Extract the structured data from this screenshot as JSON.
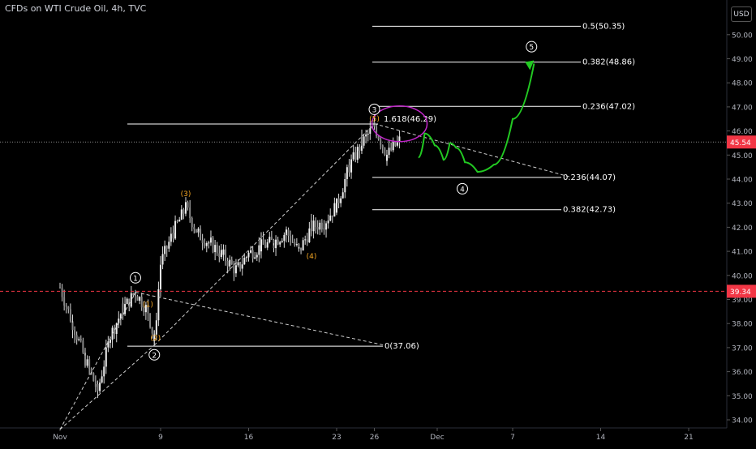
{
  "chart_data": {
    "type": "candlestick",
    "title": "CFDs on WTI Crude Oil, 4h, TVC",
    "currency": "USD",
    "ylim": [
      33.6,
      51.0
    ],
    "y_ticks": [
      34.0,
      35.0,
      36.0,
      37.0,
      38.0,
      39.0,
      40.0,
      41.0,
      42.0,
      43.0,
      44.0,
      45.0,
      46.0,
      47.0,
      48.0,
      49.0,
      50.0
    ],
    "x_ticks": [
      "Nov",
      "9",
      "16",
      "23",
      "26",
      "Dec",
      "7",
      "14",
      "21"
    ],
    "current_price": {
      "label": "45.54",
      "value": 45.54,
      "color": "#f23645"
    },
    "support_level": {
      "label": "39.34",
      "value": 39.34,
      "color": "#f23645"
    },
    "price_path": [
      {
        "date": "Nov 1",
        "price": 39.5
      },
      {
        "date": "Nov 2",
        "price": 38.0
      },
      {
        "date": "Nov 3",
        "price": 36.5
      },
      {
        "date": "Nov 4",
        "price": 35.2
      },
      {
        "date": "Nov 5",
        "price": 37.5
      },
      {
        "date": "Nov 6",
        "price": 38.6
      },
      {
        "date": "Nov 7",
        "price": 39.3
      },
      {
        "date": "Nov 8",
        "price": 38.5
      },
      {
        "date": "Nov 8.5",
        "price": 37.3
      },
      {
        "date": "Nov 9",
        "price": 40.5
      },
      {
        "date": "Nov 10",
        "price": 41.8
      },
      {
        "date": "Nov 11",
        "price": 42.8
      },
      {
        "date": "Nov 12",
        "price": 41.7
      },
      {
        "date": "Nov 13",
        "price": 41.3
      },
      {
        "date": "Nov 14",
        "price": 40.8
      },
      {
        "date": "Nov 15",
        "price": 40.2
      },
      {
        "date": "Nov 16",
        "price": 40.9
      },
      {
        "date": "Nov 17",
        "price": 41.2
      },
      {
        "date": "Nov 18",
        "price": 41.4
      },
      {
        "date": "Nov 19",
        "price": 41.8
      },
      {
        "date": "Nov 20",
        "price": 41.0
      },
      {
        "date": "Nov 21",
        "price": 42.0
      },
      {
        "date": "Nov 22",
        "price": 42.2
      },
      {
        "date": "Nov 23",
        "price": 42.9
      },
      {
        "date": "Nov 24",
        "price": 44.5
      },
      {
        "date": "Nov 25",
        "price": 45.5
      },
      {
        "date": "Nov 26",
        "price": 46.2
      },
      {
        "date": "Nov 27",
        "price": 45.0
      },
      {
        "date": "Nov 28",
        "price": 45.6
      }
    ],
    "fib_levels": [
      {
        "label": "0.5(50.35)",
        "value": 50.35
      },
      {
        "label": "0.382(48.86)",
        "value": 48.86
      },
      {
        "label": "0.236(47.02)",
        "value": 47.02
      },
      {
        "label": "1.618(46.29)",
        "value": 46.29
      },
      {
        "label": "0.236(44.07)",
        "value": 44.07
      },
      {
        "label": "0.382(42.73)",
        "value": 42.73
      },
      {
        "label": "0(37.06)",
        "value": 37.06
      }
    ],
    "wave_labels": [
      {
        "text": "1",
        "style": "circled-white",
        "date": "Nov 7",
        "price": 39.9
      },
      {
        "text": "2",
        "style": "circled-white",
        "date": "Nov 8.5",
        "price": 36.7
      },
      {
        "text": "3",
        "style": "circled-white",
        "date": "Nov 26",
        "price": 46.9
      },
      {
        "text": "4",
        "style": "circled-white",
        "date": "Dec 3",
        "price": 43.6
      },
      {
        "text": "5",
        "style": "circled-white",
        "date": "Dec 8.5",
        "price": 49.5
      },
      {
        "text": "(1)",
        "style": "orange",
        "date": "Nov 8",
        "price": 38.7
      },
      {
        "text": "(2)",
        "style": "orange",
        "date": "Nov 8.6",
        "price": 37.3
      },
      {
        "text": "(3)",
        "style": "orange",
        "date": "Nov 11",
        "price": 43.3
      },
      {
        "text": "(4)",
        "style": "orange",
        "date": "Nov 21",
        "price": 40.7
      },
      {
        "text": "(5)",
        "style": "orange",
        "date": "Nov 26",
        "price": 46.4
      }
    ],
    "projection_color": "#22c922",
    "ellipse_color": "#c026c8"
  }
}
